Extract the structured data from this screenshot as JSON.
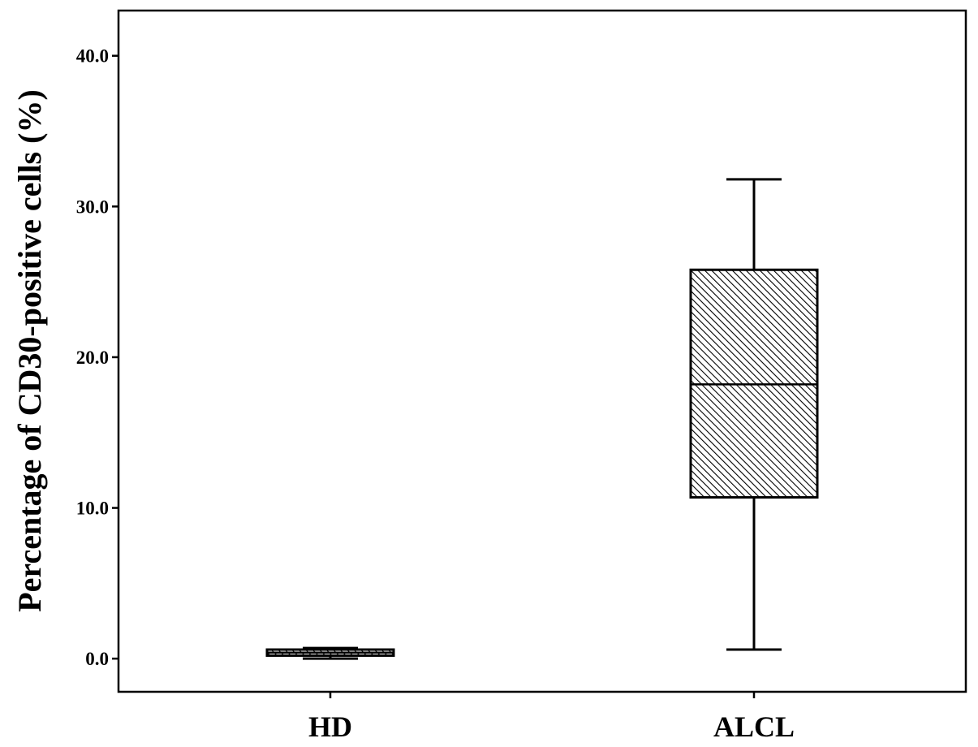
{
  "chart_data": {
    "type": "box",
    "ylabel": "Percentage of CD30-positive cells (%)",
    "xlabel": "",
    "ylim": [
      -2.2,
      43.0
    ],
    "yticks": [
      0.0,
      10.0,
      20.0,
      30.0,
      40.0
    ],
    "ytick_labels": [
      "0.0",
      "10.0",
      "20.0",
      "30.0",
      "40.0"
    ],
    "grid": false,
    "categories": [
      "HD",
      "ALCL"
    ],
    "boxes": [
      {
        "category": "HD",
        "min": 0.0,
        "q1": 0.2,
        "median": 0.4,
        "q3": 0.6,
        "max": 0.7
      },
      {
        "category": "ALCL",
        "min": 0.6,
        "q1": 10.7,
        "median": 18.2,
        "q3": 25.8,
        "max": 31.8
      }
    ],
    "fill": "hatched grey"
  }
}
